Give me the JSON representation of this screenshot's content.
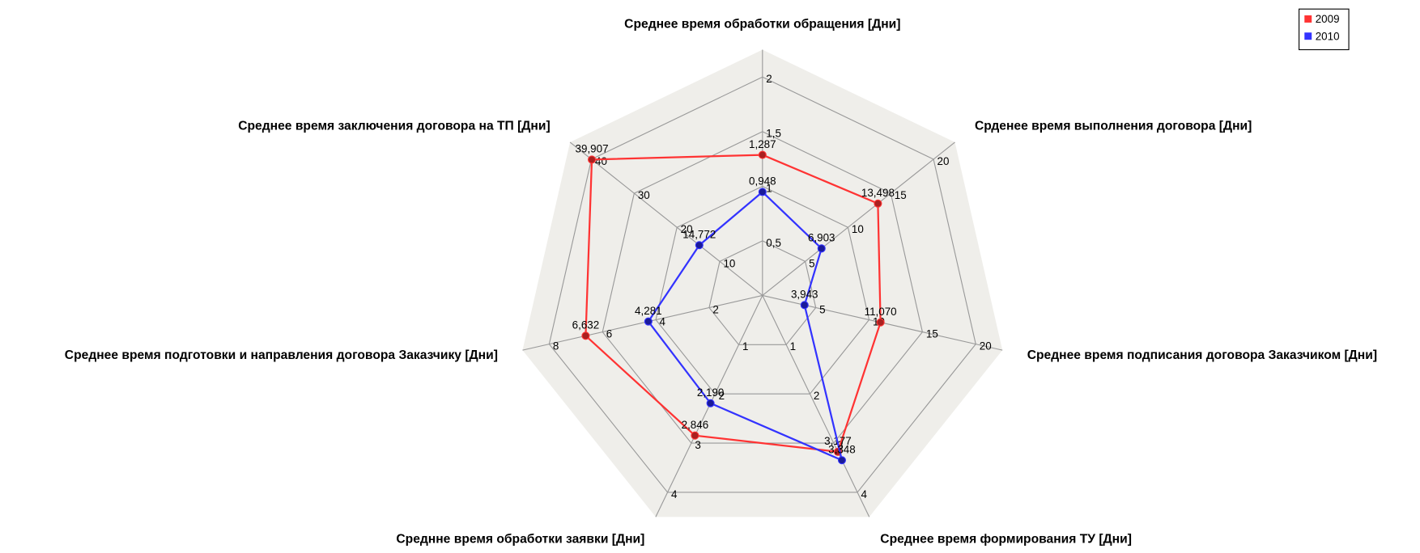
{
  "chart_data": {
    "type": "radar",
    "axes": [
      {
        "label": "Среднее время обработки обращения [Дни]",
        "lim": [
          0,
          2.25
        ],
        "ticks": [
          {
            "value": 0.5,
            "label": "0,5"
          },
          1,
          {
            "value": 1.5,
            "label": "1,5"
          },
          2
        ]
      },
      {
        "label": "Срденее время выполнения договора [Дни]",
        "lim": [
          0,
          22.5
        ],
        "ticks": [
          5,
          10,
          15,
          20
        ]
      },
      {
        "label": "Среднее время подписания договора Заказчиком [Дни]",
        "lim": [
          0,
          22.5
        ],
        "ticks": [
          5,
          10,
          15,
          20
        ]
      },
      {
        "label": "Среднее время формирования ТУ [Дни]",
        "lim": [
          0,
          4.5
        ],
        "ticks": [
          1,
          2,
          3,
          4
        ]
      },
      {
        "label": "Среднне время обработки заявки [Дни]",
        "lim": [
          0,
          4.5
        ],
        "ticks": [
          1,
          2,
          3,
          4
        ]
      },
      {
        "label": "Среднее время подготовки и направления договора Заказчику [Дни]",
        "lim": [
          0,
          9
        ],
        "ticks": [
          2,
          4,
          6,
          8
        ]
      },
      {
        "label": "Среднее время заключения договора на ТП [Дни]",
        "lim": [
          0,
          45
        ],
        "ticks": [
          10,
          20,
          30,
          40
        ]
      }
    ],
    "series": [
      {
        "name": "2009",
        "color": "#ff3333",
        "point_color": "#aa2020",
        "values": [
          1.287,
          13.498,
          11.07,
          3.177,
          2.846,
          6.632,
          39.907
        ],
        "value_labels": [
          "1,287",
          "13,498",
          "11,070",
          "3,177",
          "2,846",
          "6,632",
          "39,907"
        ]
      },
      {
        "name": "2010",
        "color": "#3333ff",
        "point_color": "#1a1a99",
        "values": [
          0.948,
          6.903,
          3.943,
          3.348,
          2.19,
          4.281,
          14.772
        ],
        "value_labels": [
          "0,948",
          "6,903",
          "3,943",
          "3,348",
          "2,190",
          "4,281",
          "14,772"
        ]
      }
    ],
    "legend": "top-right"
  }
}
